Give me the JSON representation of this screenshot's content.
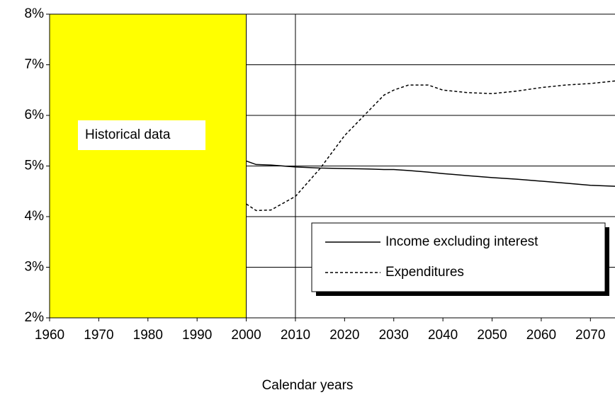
{
  "chart_data": {
    "type": "line",
    "xlabel": "Calendar years",
    "x": [
      2000,
      2002,
      2005,
      2010,
      2015,
      2020,
      2025,
      2028,
      2030,
      2033,
      2037,
      2040,
      2045,
      2050,
      2055,
      2060,
      2065,
      2070,
      2075
    ],
    "series": [
      {
        "name": "Income excluding interest",
        "color": "#000000",
        "dash": "solid",
        "values": [
          5.1,
          5.03,
          5.02,
          4.98,
          4.96,
          4.95,
          4.94,
          4.93,
          4.93,
          4.91,
          4.88,
          4.85,
          4.81,
          4.77,
          4.74,
          4.7,
          4.66,
          4.62,
          4.6
        ]
      },
      {
        "name": "Expenditures",
        "color": "#000000",
        "dash": "dotted",
        "values": [
          4.25,
          4.12,
          4.13,
          4.4,
          4.95,
          5.6,
          6.1,
          6.4,
          6.5,
          6.6,
          6.6,
          6.5,
          6.45,
          6.43,
          6.48,
          6.55,
          6.6,
          6.63,
          6.68
        ]
      }
    ],
    "shaded_region": {
      "x": [
        1960,
        2000
      ],
      "color": "#ffff00",
      "label": "Historical data"
    },
    "xlim": [
      1960,
      2075
    ],
    "xticks": [
      1960,
      1970,
      1980,
      1990,
      2000,
      2010,
      2020,
      2030,
      2040,
      2050,
      2060,
      2070
    ],
    "ylim": [
      2,
      8
    ],
    "yticks": [
      {
        "value": 2,
        "label": "2%"
      },
      {
        "value": 3,
        "label": "3%"
      },
      {
        "value": 4,
        "label": "4%"
      },
      {
        "value": 5,
        "label": "5%"
      },
      {
        "value": 6,
        "label": "6%"
      },
      {
        "value": 7,
        "label": "7%"
      },
      {
        "value": 8,
        "label": "8%"
      }
    ],
    "grid": true,
    "legend": "lower right"
  }
}
